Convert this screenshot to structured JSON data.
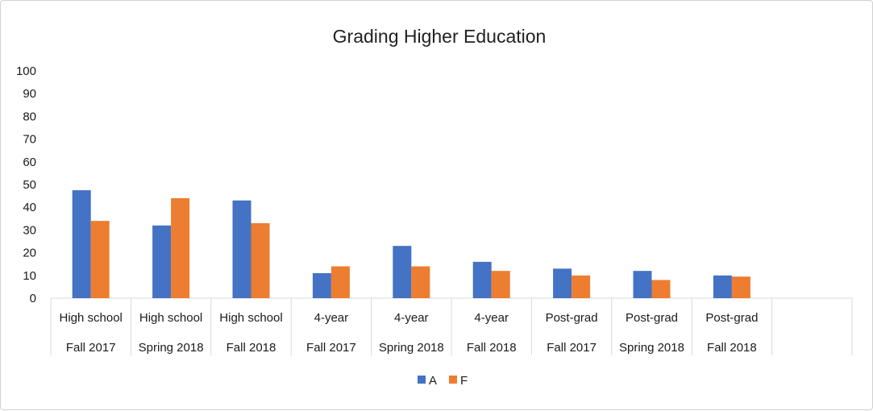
{
  "chart_data": {
    "type": "bar",
    "title": "Grading Higher Education",
    "categories": [
      [
        "High school",
        "Fall 2017"
      ],
      [
        "High school",
        "Spring 2018"
      ],
      [
        "High school",
        "Fall 2018"
      ],
      [
        "4-year",
        "Fall 2017"
      ],
      [
        "4-year",
        "Spring 2018"
      ],
      [
        "4-year",
        "Fall 2018"
      ],
      [
        "Post-grad",
        "Fall 2017"
      ],
      [
        "Post-grad",
        "Spring 2018"
      ],
      [
        "Post-grad",
        "Fall 2018"
      ],
      [
        "",
        ""
      ]
    ],
    "series": [
      {
        "name": "A",
        "color": "#4472C4",
        "values": [
          47.5,
          32,
          43,
          11,
          23,
          16,
          13,
          12,
          10,
          null
        ]
      },
      {
        "name": "F",
        "color": "#ED7D31",
        "values": [
          34,
          44,
          33,
          14,
          14,
          12,
          10,
          8,
          9.5,
          null
        ]
      }
    ],
    "ylim": [
      0,
      100
    ],
    "yticks": [
      0,
      10,
      20,
      30,
      40,
      50,
      60,
      70,
      80,
      90,
      100
    ],
    "grid": false,
    "legend": "bottom"
  }
}
